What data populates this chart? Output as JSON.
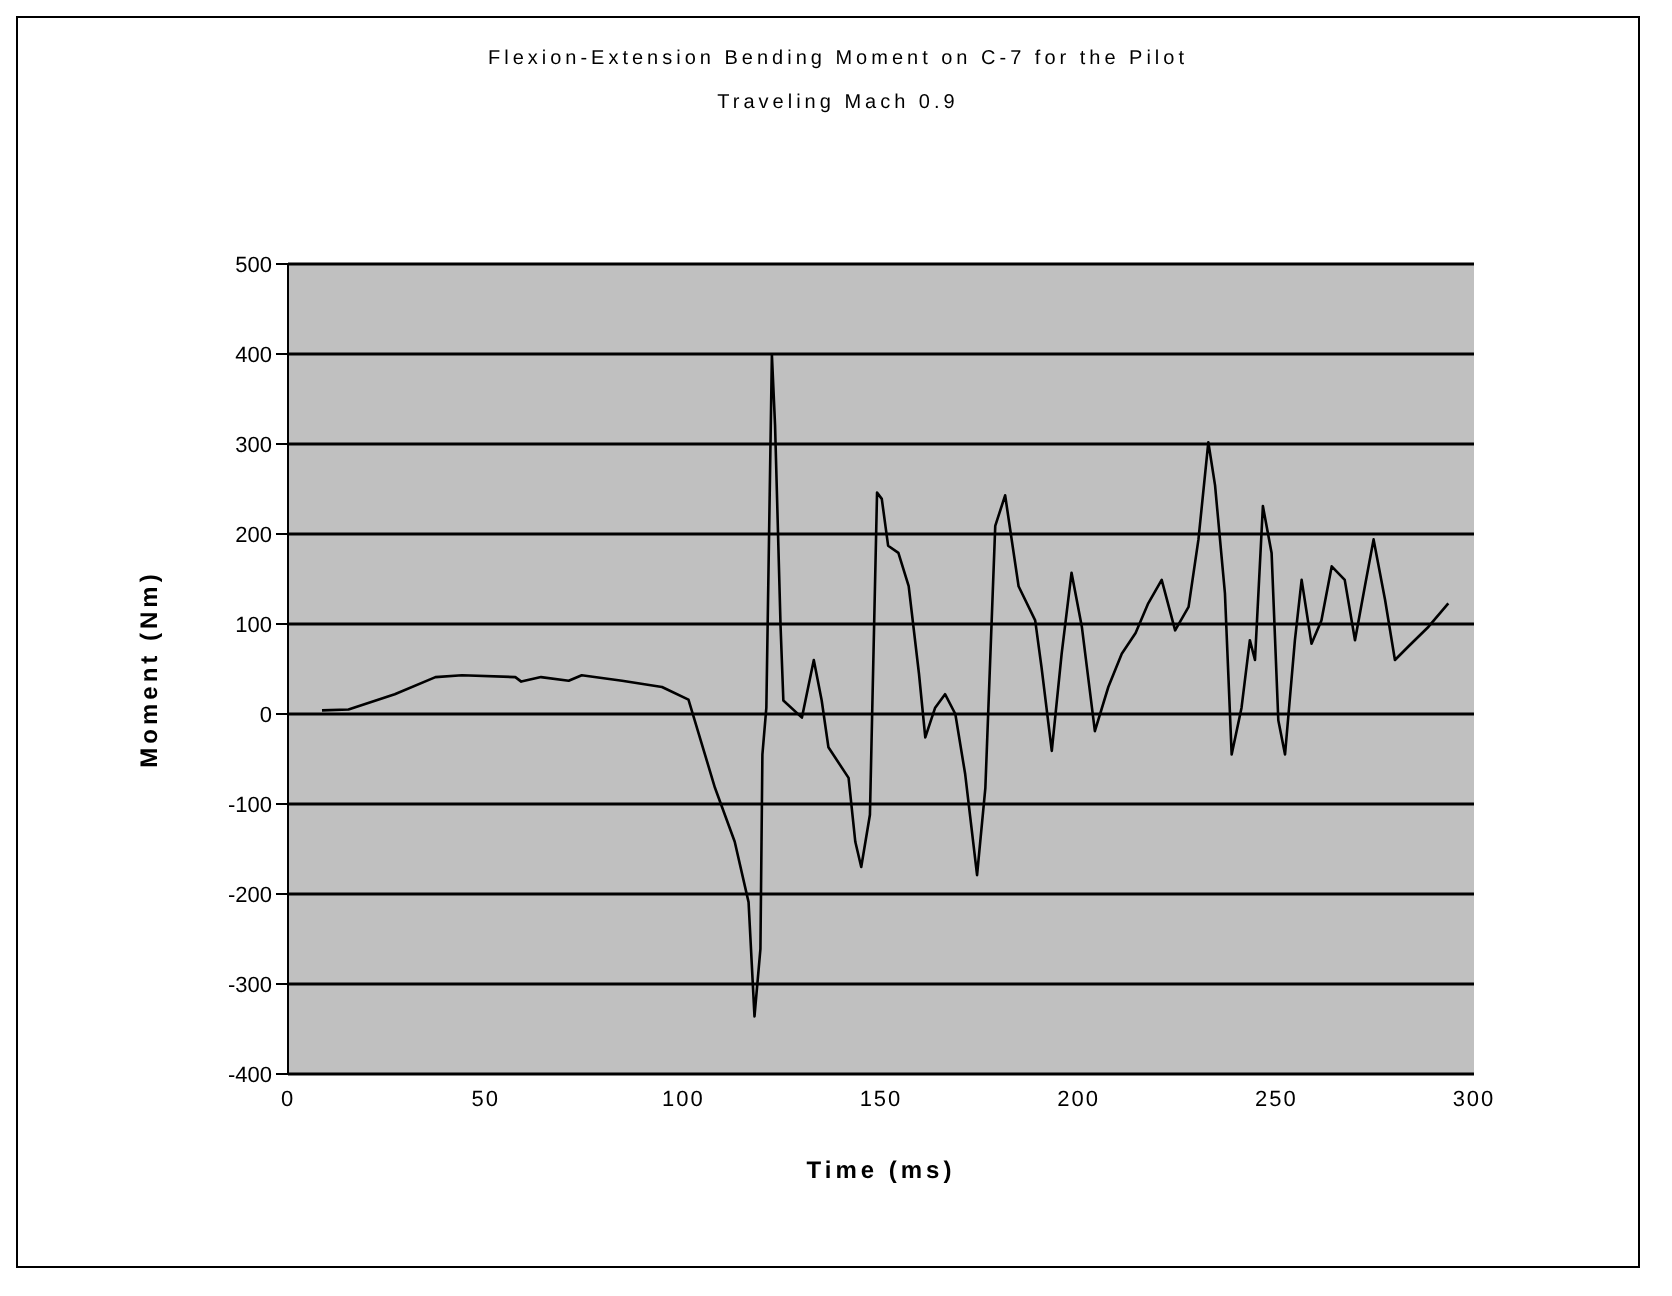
{
  "chart_data": {
    "type": "line",
    "title": "Flexion-Extension Bending Moment on C-7 for the Pilot Traveling Mach 0.9",
    "xlabel": "Time (ms)",
    "ylabel": "Moment (Nm)",
    "xlim": [
      0,
      300
    ],
    "xticks": [
      0,
      50,
      100,
      150,
      200,
      250,
      300
    ],
    "ylim": [
      -400,
      500
    ],
    "yticks": [
      -400,
      -300,
      -200,
      -100,
      0,
      100,
      200,
      300,
      400,
      500
    ],
    "grid": "y",
    "marker": "none",
    "line_style": "solid",
    "series": [
      {
        "color": "#000000",
        "x": [
          8.6,
          15.3,
          27,
          37.3,
          44,
          57.5,
          59,
          64,
          71,
          74.3,
          84.5,
          94.6,
          101.3,
          108,
          113,
          116.5,
          118,
          119.5,
          120,
          121,
          122.4,
          123.2,
          124.6,
          125.3,
          130,
          133,
          135,
          136.7,
          141.8,
          143.5,
          145,
          147.2,
          149,
          150.2,
          151.8,
          154.4,
          157,
          159.6,
          161.2,
          163.7,
          166.2,
          168.8,
          171.3,
          174.3,
          176.4,
          178.9,
          181.4,
          184.8,
          189,
          190.6,
          193.2,
          195.7,
          198.2,
          200.8,
          204.1,
          207.5,
          210.9,
          214.4,
          217.6,
          221,
          224.4,
          227.8,
          230.3,
          232.8,
          234.5,
          237,
          238.7,
          241.2,
          243.3,
          244.6,
          246.6,
          248.8,
          250.5,
          252.2,
          254.7,
          256.4,
          258.9,
          261.4,
          264,
          267.3,
          269.9,
          272.4,
          274.6,
          277.5,
          280,
          283.4,
          288.5,
          293.5
        ],
        "values": [
          4,
          5,
          22,
          41,
          43,
          41,
          36,
          41,
          37,
          43,
          37,
          30,
          16,
          -82,
          -142,
          -209,
          -336,
          -261,
          -45,
          7,
          399,
          321,
          97,
          15,
          -4,
          60,
          15,
          -37,
          -71,
          -142,
          -170,
          -112,
          246,
          239,
          187,
          179,
          142,
          45,
          -26,
          7,
          22,
          0,
          -67,
          -179,
          -82,
          209,
          243,
          142,
          104,
          52,
          -41,
          67,
          157,
          97,
          -19,
          30,
          67,
          90,
          123,
          149,
          93,
          119,
          194,
          302,
          254,
          134,
          -45,
          7,
          82,
          60,
          231,
          179,
          -7,
          -45,
          82,
          149,
          78,
          104,
          164,
          149,
          82,
          142,
          194,
          127,
          60,
          75,
          97,
          123
        ]
      }
    ]
  }
}
